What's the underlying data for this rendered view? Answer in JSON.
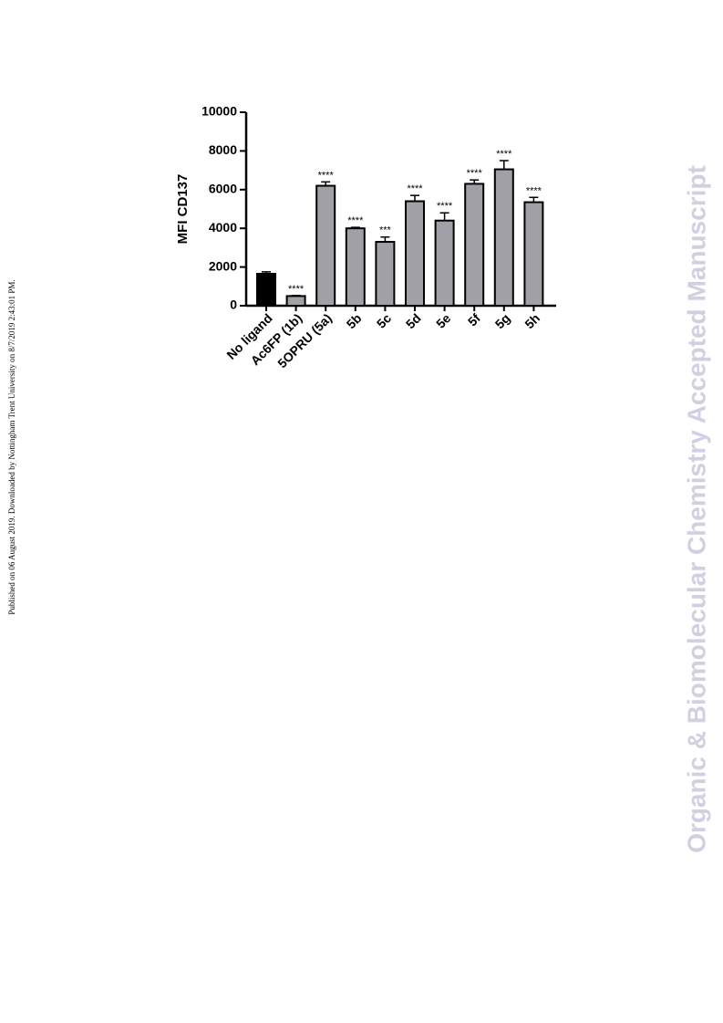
{
  "sidebar": "Published on 06 August 2019. Downloaded by Nottingham Trent University on 8/7/2019 2:43:01 PM.",
  "watermark": "Organic & Biomolecular Chemistry Accepted Manuscript",
  "chart_data": {
    "type": "bar",
    "ylabel": "MFI CD137",
    "categories": [
      "No ligand",
      "Ac6FP (1b)",
      "5OPRU (5a)",
      "5b",
      "5c",
      "5d",
      "5e",
      "5f",
      "5g",
      "5h"
    ],
    "values": [
      1650,
      500,
      6200,
      4000,
      3300,
      5400,
      4400,
      6300,
      7050,
      5350
    ],
    "errors": [
      100,
      30,
      200,
      50,
      250,
      300,
      400,
      200,
      450,
      250
    ],
    "annotations": [
      null,
      "****",
      "****",
      "****",
      "***",
      "****",
      "****",
      "****",
      "****",
      "****"
    ],
    "colors": [
      "#000000",
      "#a0a0a6",
      "#a0a0a6",
      "#a0a0a6",
      "#a0a0a6",
      "#a0a0a6",
      "#a0a0a6",
      "#a0a0a6",
      "#a0a0a6",
      "#a0a0a6"
    ],
    "ylim": [
      0,
      10000
    ],
    "yticks": [
      0,
      2000,
      4000,
      6000,
      8000,
      10000
    ]
  }
}
